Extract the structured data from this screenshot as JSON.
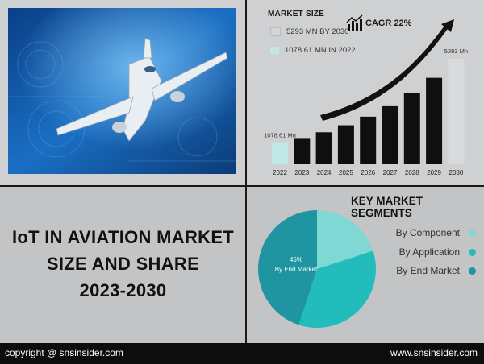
{
  "market_size_title": "MARKET SIZE",
  "legend": [
    {
      "label": "5293 MN BY 2030",
      "color": "#d4d5d7"
    },
    {
      "label": "1078.61 MN IN 2022",
      "color": "#bfe7e6"
    }
  ],
  "cagr": "CAGR 22%",
  "main_title": [
    "IoT IN AVIATION MARKET",
    "SIZE AND SHARE",
    "2023-2030"
  ],
  "key_segments_title": "KEY MARKET SEGMENTS",
  "segments": [
    {
      "label": "By Component",
      "color": "#7fd8d4"
    },
    {
      "label": "By Application",
      "color": "#22bcbc"
    },
    {
      "label": "By End Market",
      "color": "#1e95a0"
    }
  ],
  "footer": {
    "left": "copyright @ snsinsider.com",
    "right": "www.snsinsider.com"
  },
  "icons": {
    "trend": "bar-trend-icon",
    "image": "airplane-photo"
  },
  "chart_data": [
    {
      "type": "bar",
      "title": "MARKET SIZE",
      "categories": [
        "2022",
        "2023",
        "2024",
        "2025",
        "2026",
        "2027",
        "2028",
        "2029",
        "2030"
      ],
      "values": [
        1078.61,
        1316,
        1605,
        1958,
        2389,
        2914,
        3556,
        4338,
        5293
      ],
      "data_labels": {
        "2022": "1078.61 Mn",
        "2030": "5293 Mn"
      },
      "colors": {
        "first": "#bfe7e6",
        "middle": "#0f0f0f",
        "last": "#d9dadc"
      },
      "ylim": [
        0,
        5293
      ]
    },
    {
      "type": "pie",
      "labels": [
        "By Component",
        "By Application",
        "By End Market"
      ],
      "values": [
        20,
        35,
        45
      ],
      "data_labels": {
        "By End Market": [
          "45%",
          "By End Market"
        ]
      },
      "colors": [
        "#7fd8d4",
        "#22bcbc",
        "#1e95a0"
      ]
    }
  ]
}
